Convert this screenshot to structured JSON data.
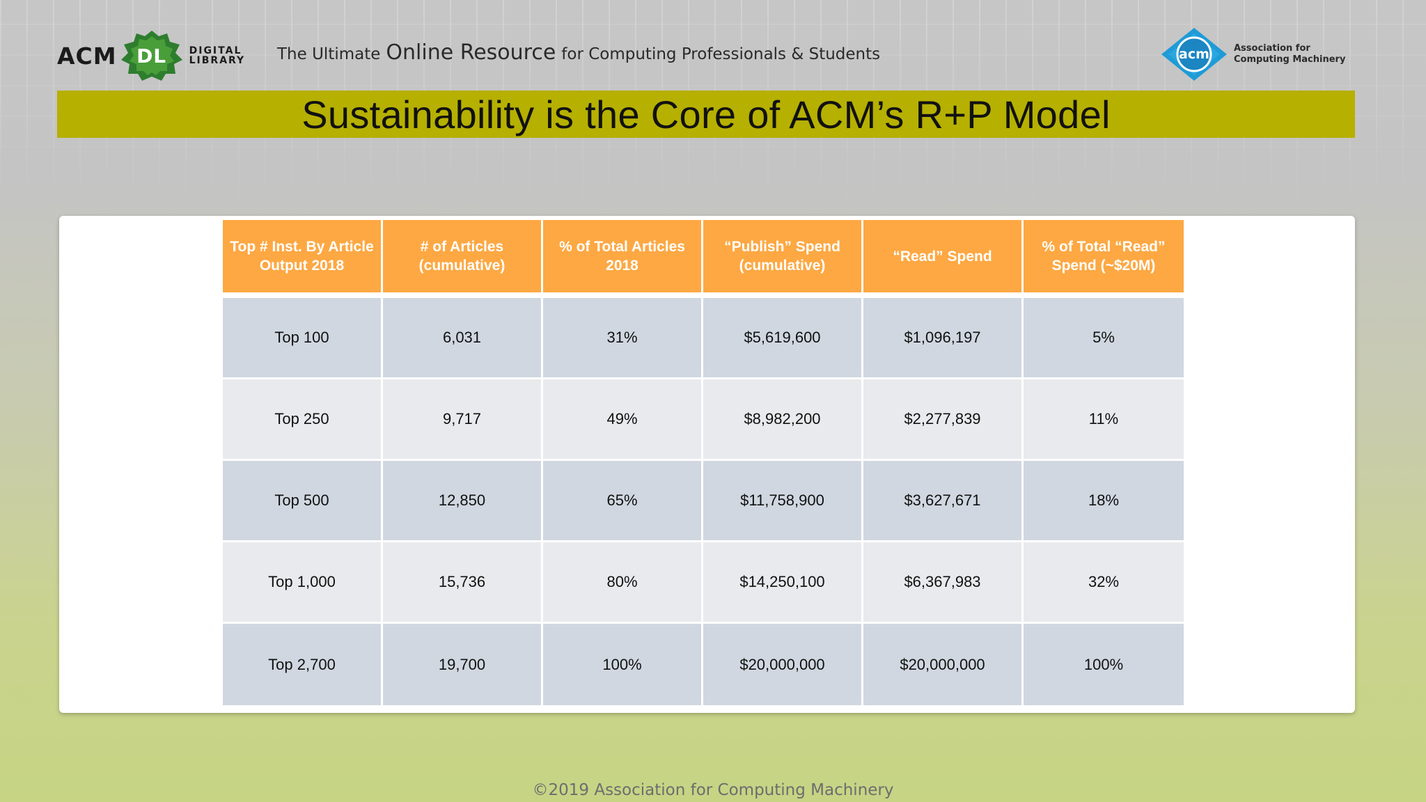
{
  "header": {
    "logo_acm": "ACM",
    "logo_dl": "DL",
    "logo_digital": "DIGITAL",
    "logo_library": "LIBRARY",
    "tagline_part1": "The Ultimate",
    "tagline_emphasis": "Online Resource",
    "tagline_part2": "for Computing Professionals &  Students",
    "org_logo_text": "acm",
    "org_name_line1": "Association for",
    "org_name_line2": "Computing Machinery"
  },
  "slide": {
    "title": "Sustainability is the Core of ACM’s R+P Model"
  },
  "table": {
    "headers": [
      "Top # Inst. By Article Output 2018",
      "# of Articles (cumulative)",
      "% of Total Articles 2018",
      "“Publish” Spend (cumulative)",
      "“Read” Spend",
      "% of Total “Read” Spend (~$20M)"
    ],
    "rows": [
      [
        "Top 100",
        "6,031",
        "31%",
        "$5,619,600",
        "$1,096,197",
        "5%"
      ],
      [
        "Top 250",
        "9,717",
        "49%",
        "$8,982,200",
        "$2,277,839",
        "11%"
      ],
      [
        "Top 500",
        "12,850",
        "65%",
        "$11,758,900",
        "$3,627,671",
        "18%"
      ],
      [
        "Top 1,000",
        "15,736",
        "80%",
        "$14,250,100",
        "$6,367,983",
        "32%"
      ],
      [
        "Top 2,700",
        "19,700",
        "100%",
        "$20,000,000",
        "$20,000,000",
        "100%"
      ]
    ]
  },
  "footer": {
    "copyright": "©2019 Association for Computing Machinery"
  },
  "colors": {
    "title_bar": "#b6b000",
    "header_cell": "#fda843",
    "row_dark": "#d0d7e0",
    "row_light": "#e9eaed",
    "acm_badge": "#1f9bd7",
    "dl_badge": "#2e7d2e"
  }
}
